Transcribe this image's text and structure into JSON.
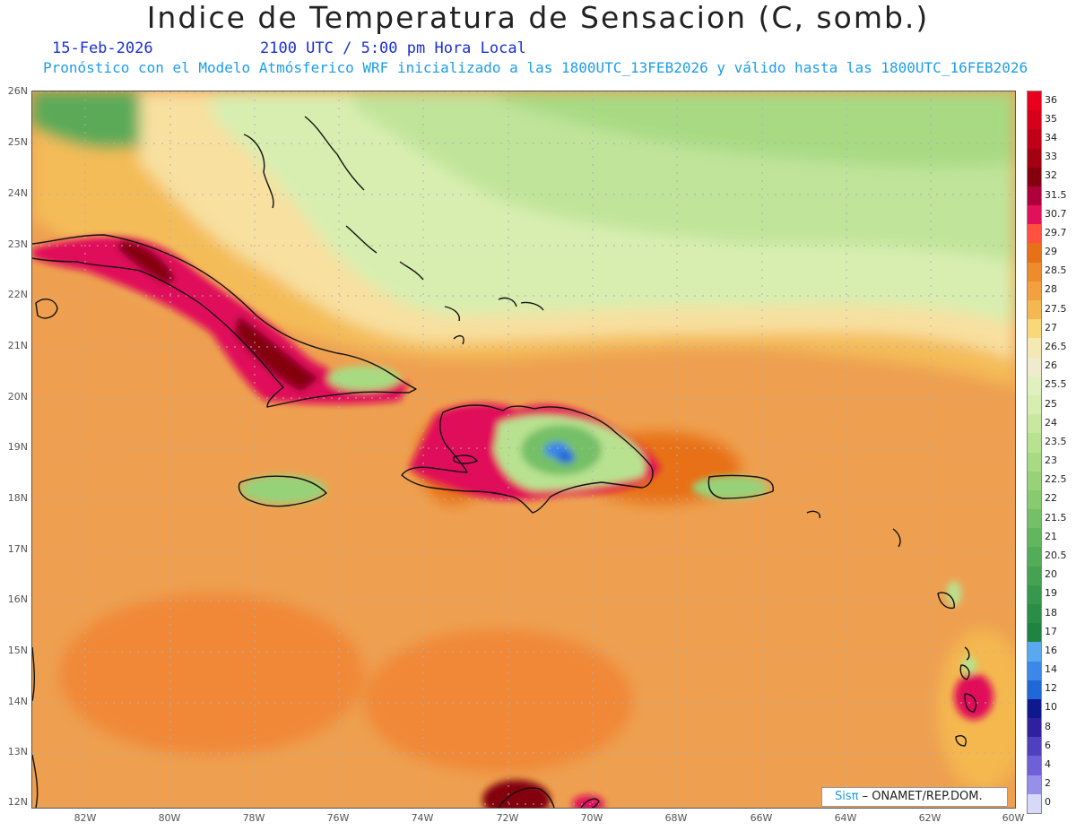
{
  "title": "Indice de Temperatura de Sensacion (C, somb.)",
  "date": "15-Feb-2026",
  "time": "2100 UTC / 5:00 pm Hora Local",
  "description": "Pronóstico con el Modelo Atmósferico WRF inicializado a las 1800UTC_13FEB2026 y válido hasta las  1800UTC_16FEB2026",
  "lat_labels": [
    "26N",
    "25N",
    "24N",
    "23N",
    "22N",
    "21N",
    "20N",
    "19N",
    "18N",
    "17N",
    "16N",
    "15N",
    "14N",
    "13N",
    "12N"
  ],
  "lon_labels": [
    "82W",
    "80W",
    "78W",
    "76W",
    "74W",
    "72W",
    "70W",
    "68W",
    "66W",
    "64W",
    "62W",
    "60W"
  ],
  "map_extent": {
    "lon": [
      -83.2,
      -60.0
    ],
    "lat": [
      12.0,
      26.1
    ]
  },
  "colorbar": {
    "labels": [
      "36",
      "35",
      "34",
      "33",
      "32",
      "31.5",
      "30.7",
      "29.7",
      "29",
      "28.5",
      "28",
      "27.5",
      "27",
      "26.5",
      "26",
      "25.5",
      "25",
      "24",
      "23.5",
      "23",
      "22.5",
      "22",
      "21.5",
      "21",
      "20.5",
      "20",
      "19",
      "18",
      "17",
      "16",
      "14",
      "12",
      "10",
      "8",
      "6",
      "4",
      "2",
      "0"
    ],
    "colors": [
      "#e8001c",
      "#d6001a",
      "#c00016",
      "#a30012",
      "#84000e",
      "#b0003a",
      "#e0105a",
      "#ff5040",
      "#e87018",
      "#ee8c2c",
      "#f2a040",
      "#f4b850",
      "#f8d878",
      "#f4e8b4",
      "#eeeccc",
      "#e2f0c0",
      "#d6eeb0",
      "#c8e8a0",
      "#b8e290",
      "#a8da82",
      "#98d278",
      "#88ca6e",
      "#74c066",
      "#62b65e",
      "#52ac58",
      "#44a252",
      "#36984c",
      "#2a8e46",
      "#1f8440",
      "#5aa8f0",
      "#3a88e8",
      "#2068d8",
      "#101890",
      "#3020a0",
      "#5040c0",
      "#7060d8",
      "#9890e8",
      "#d8d8f8"
    ]
  },
  "credit": {
    "brand": "Sisπ",
    "org": " – ONAMET/REP.DOM."
  }
}
